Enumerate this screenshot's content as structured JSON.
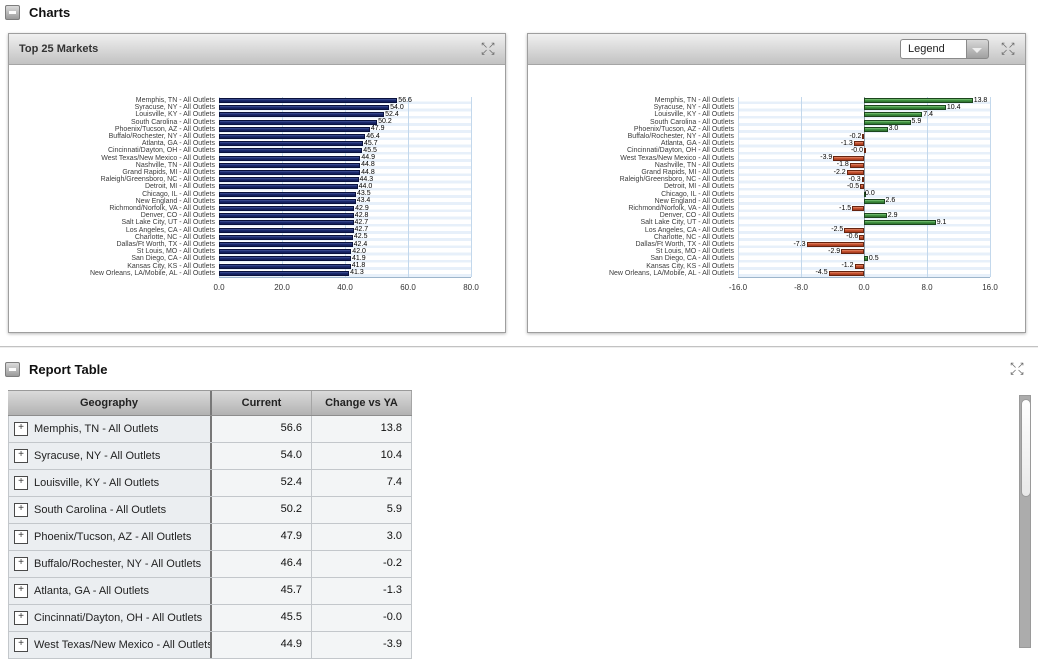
{
  "sections": {
    "charts": {
      "title": "Charts"
    },
    "report": {
      "title": "Report Table"
    }
  },
  "left_panel": {
    "title": "Top 25 Markets"
  },
  "right_panel": {
    "legend_button": "Legend"
  },
  "colors": {
    "bar_navy": "#1b2a6e",
    "bar_green": "#3f9340",
    "bar_red": "#c8502f",
    "grid_blue": "#c3d8ec",
    "stripe_blue": "#e7f0fa"
  },
  "chart_data": [
    {
      "type": "bar",
      "orientation": "horizontal",
      "title": "Top 25 Markets",
      "xlabel": "",
      "ylabel": "",
      "grid": true,
      "legend_position": "none",
      "categories": [
        "Memphis, TN - All Outlets",
        "Syracuse, NY - All Outlets",
        "Louisville, KY - All Outlets",
        "South Carolina - All Outlets",
        "Phoenix/Tucson, AZ - All Outlets",
        "Buffalo/Rochester, NY - All Outlets",
        "Atlanta, GA - All Outlets",
        "Cincinnati/Dayton, OH - All Outlets",
        "West Texas/New Mexico - All Outlets",
        "Nashville, TN - All Outlets",
        "Grand Rapids, MI - All Outlets",
        "Raleigh/Greensboro, NC - All Outlets",
        "Detroit, MI - All Outlets",
        "Chicago, IL - All Outlets",
        "New England - All Outlets",
        "Richmond/Norfolk, VA - All Outlets",
        "Denver, CO - All Outlets",
        "Salt Lake City, UT - All Outlets",
        "Los Angeles, CA - All Outlets",
        "Charlotte, NC - All Outlets",
        "Dallas/Ft Worth, TX - All Outlets",
        "St Louis, MO - All Outlets",
        "San Diego, CA - All Outlets",
        "Kansas City, KS - All Outlets",
        "New Orleans, LA/Mobile, AL - All Outlets"
      ],
      "values": [
        56.6,
        54.0,
        52.4,
        50.2,
        47.9,
        46.4,
        45.7,
        45.5,
        44.9,
        44.8,
        44.8,
        44.3,
        44.0,
        43.5,
        43.4,
        42.9,
        42.8,
        42.7,
        42.7,
        42.5,
        42.4,
        42.0,
        41.9,
        41.8,
        41.3
      ],
      "labels": [
        "56.6",
        "54.0",
        "52.4",
        "50.2",
        "47.9",
        "46.4",
        "45.7",
        "45.5",
        "44.9",
        "44.8",
        "44.8",
        "44.3",
        "44.0",
        "43.5",
        "43.4",
        "42.9",
        "42.8",
        "42.7",
        "42.7",
        "42.5",
        "42.4",
        "42.0",
        "41.9",
        "41.8",
        "41.3"
      ],
      "xlim": [
        0,
        80
      ],
      "xtick_values": [
        0,
        20,
        40,
        60,
        80
      ],
      "xtick_labels": [
        "0.0",
        "20.0",
        "40.0",
        "60.0",
        "80.0"
      ],
      "bar_style": "navy"
    },
    {
      "type": "bar",
      "orientation": "horizontal",
      "title": "",
      "xlabel": "",
      "ylabel": "",
      "grid": true,
      "legend_position": "dropdown-top-right",
      "categories": [
        "Memphis, TN - All Outlets",
        "Syracuse, NY - All Outlets",
        "Louisville, KY - All Outlets",
        "South Carolina - All Outlets",
        "Phoenix/Tucson, AZ - All Outlets",
        "Buffalo/Rochester, NY - All Outlets",
        "Atlanta, GA - All Outlets",
        "Cincinnati/Dayton, OH - All Outlets",
        "West Texas/New Mexico - All Outlets",
        "Nashville, TN - All Outlets",
        "Grand Rapids, MI - All Outlets",
        "Raleigh/Greensboro, NC - All Outlets",
        "Detroit, MI - All Outlets",
        "Chicago, IL - All Outlets",
        "New England - All Outlets",
        "Richmond/Norfolk, VA - All Outlets",
        "Denver, CO - All Outlets",
        "Salt Lake City, UT - All Outlets",
        "Los Angeles, CA - All Outlets",
        "Charlotte, NC - All Outlets",
        "Dallas/Ft Worth, TX - All Outlets",
        "St Louis, MO - All Outlets",
        "San Diego, CA - All Outlets",
        "Kansas City, KS - All Outlets",
        "New Orleans, LA/Mobile, AL - All Outlets"
      ],
      "values": [
        13.8,
        10.4,
        7.4,
        5.9,
        3.0,
        -0.2,
        -1.3,
        -0.0,
        -3.9,
        -1.8,
        -2.2,
        -0.3,
        -0.5,
        0.0,
        2.6,
        -1.5,
        2.9,
        9.1,
        -2.5,
        -0.6,
        -7.3,
        -2.9,
        0.5,
        -1.2,
        -4.5
      ],
      "labels": [
        "13.8",
        "10.4",
        "7.4",
        "5.9",
        "3.0",
        "-0.2",
        "-1.3",
        "-0.0",
        "-3.9",
        "-1.8",
        "-2.2",
        "-0.3",
        "-0.5",
        "0.0",
        "2.6",
        "-1.5",
        "2.9",
        "9.1",
        "-2.5",
        "-0.6",
        "-7.3",
        "-2.9",
        "0.5",
        "-1.2",
        "-4.5"
      ],
      "xlim": [
        -16,
        16
      ],
      "xtick_values": [
        -16,
        -8,
        0,
        8,
        16
      ],
      "xtick_labels": [
        "-16.0",
        "-8.0",
        "0.0",
        "8.0",
        "16.0"
      ],
      "bar_style": "diverging",
      "positive_color": "#3f9340",
      "negative_color": "#c8502f"
    }
  ],
  "table": {
    "columns": [
      "Geography",
      "Current",
      "Change vs YA"
    ],
    "rows": [
      [
        "Memphis, TN - All Outlets",
        "56.6",
        "13.8"
      ],
      [
        "Syracuse, NY - All Outlets",
        "54.0",
        "10.4"
      ],
      [
        "Louisville, KY - All Outlets",
        "52.4",
        "7.4"
      ],
      [
        "South Carolina - All Outlets",
        "50.2",
        "5.9"
      ],
      [
        "Phoenix/Tucson, AZ - All Outlets",
        "47.9",
        "3.0"
      ],
      [
        "Buffalo/Rochester, NY - All Outlets",
        "46.4",
        "-0.2"
      ],
      [
        "Atlanta, GA - All Outlets",
        "45.7",
        "-1.3"
      ],
      [
        "Cincinnati/Dayton, OH - All Outlets",
        "45.5",
        "-0.0"
      ],
      [
        "West Texas/New Mexico - All Outlets",
        "44.9",
        "-3.9"
      ]
    ]
  },
  "icons": {
    "collapse": "minus-icon",
    "maximize": "expand-arrows-icon",
    "row_expand": "plus-icon",
    "legend_dropdown_arrow": "chevron-down-icon"
  }
}
